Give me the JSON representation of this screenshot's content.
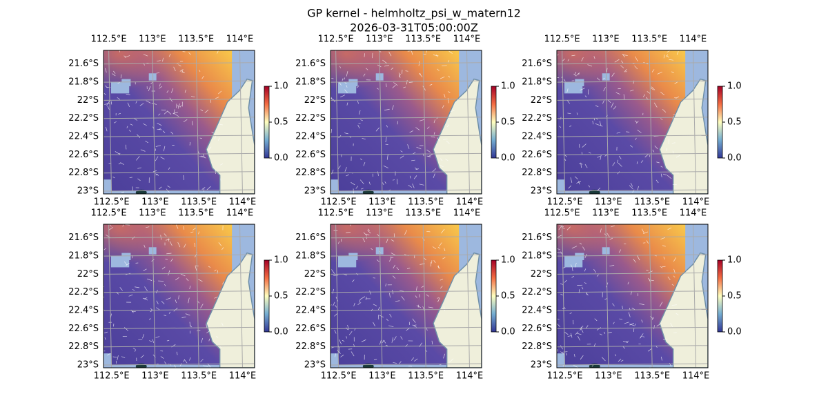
{
  "title": "GP kernel - helmholtz_psi_w_matern12",
  "subtitle": "2026-03-31T05:00:00Z",
  "panels": 6,
  "lon_range": [
    112.44,
    114.17
  ],
  "lat_range": [
    -21.45,
    -23.03
  ],
  "lon_ticks": [
    {
      "value": 112.5,
      "label": "112.5°E"
    },
    {
      "value": 113,
      "label": "113°E"
    },
    {
      "value": 113.5,
      "label": "113.5°E"
    },
    {
      "value": 114,
      "label": "114°E"
    }
  ],
  "lat_ticks": [
    {
      "value": -21.6,
      "label": "21.6°S"
    },
    {
      "value": -21.8,
      "label": "21.8°S"
    },
    {
      "value": -22,
      "label": "22°S"
    },
    {
      "value": -22.2,
      "label": "22.2°S"
    },
    {
      "value": -22.4,
      "label": "22.4°S"
    },
    {
      "value": -22.6,
      "label": "22.6°S"
    },
    {
      "value": -22.8,
      "label": "22.8°S"
    },
    {
      "value": -23,
      "label": "23°S"
    }
  ],
  "colorbar": {
    "lim": [
      0,
      1
    ],
    "ticks": [
      {
        "value": 0,
        "label": "0.0"
      },
      {
        "value": 0.5,
        "label": "0.5"
      },
      {
        "value": 1,
        "label": "1.0"
      }
    ]
  }
}
